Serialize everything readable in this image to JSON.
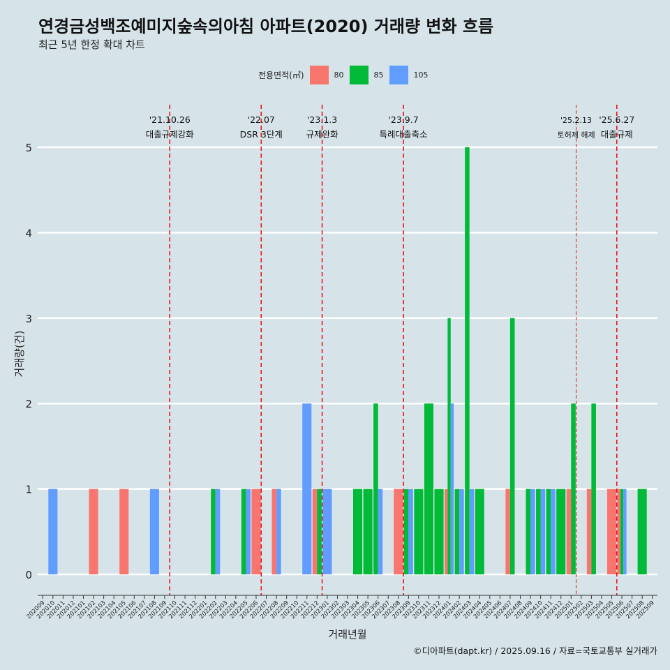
{
  "header": {
    "title": "연경금성백조예미지숲속의아침 아파트(2020) 거래량 변화 흐름",
    "subtitle": "최근 5년 한정 확대 차트"
  },
  "legend": {
    "title": "전용면적(㎡)",
    "items": [
      {
        "label": "80",
        "color": "#f8766d"
      },
      {
        "label": "85",
        "color": "#00ba38"
      },
      {
        "label": "105",
        "color": "#619cff"
      }
    ]
  },
  "caption": "©디아파트(dapt.kr) / 2025.09.16 / 자료=국토교통부 실거래가",
  "chart_data": {
    "type": "bar",
    "xlabel": "거래년월",
    "ylabel": "거래량(건)",
    "ylim": [
      0,
      5
    ],
    "yticks": [
      0,
      1,
      2,
      3,
      4,
      5
    ],
    "grid": true,
    "legend_position": "top",
    "categories": [
      "202009",
      "202010",
      "202011",
      "202012",
      "202101",
      "202102",
      "202103",
      "202104",
      "202105",
      "202106",
      "202107",
      "202108",
      "202109",
      "202110",
      "202111",
      "202112",
      "202201",
      "202202",
      "202203",
      "202204",
      "202205",
      "202206",
      "202207",
      "202208",
      "202209",
      "202210",
      "202211",
      "202212",
      "202301",
      "202302",
      "202303",
      "202304",
      "202305",
      "202306",
      "202307",
      "202308",
      "202309",
      "202310",
      "202311",
      "202312",
      "202401",
      "202402",
      "202403",
      "202404",
      "202405",
      "202406",
      "202407",
      "202408",
      "202409",
      "202410",
      "202411",
      "202412",
      "202501",
      "202502",
      "202503",
      "202504",
      "202505",
      "202506",
      "202507",
      "202508",
      "202509"
    ],
    "series": [
      {
        "name": "80",
        "color": "#f8766d",
        "values": [
          {
            "x": "202102",
            "y": 1
          },
          {
            "x": "202105",
            "y": 1
          },
          {
            "x": "202206",
            "y": 1
          },
          {
            "x": "202208",
            "y": 1
          },
          {
            "x": "202212",
            "y": 1
          },
          {
            "x": "202308",
            "y": 1
          },
          {
            "x": "202401",
            "y": 1
          },
          {
            "x": "202407",
            "y": 1
          },
          {
            "x": "202501",
            "y": 1
          },
          {
            "x": "202503",
            "y": 1
          },
          {
            "x": "202505",
            "y": 1
          },
          {
            "x": "202506",
            "y": 1
          }
        ]
      },
      {
        "name": "85",
        "color": "#00ba38",
        "values": [
          {
            "x": "202202",
            "y": 1
          },
          {
            "x": "202205",
            "y": 1
          },
          {
            "x": "202212",
            "y": 1
          },
          {
            "x": "202304",
            "y": 1
          },
          {
            "x": "202305",
            "y": 1
          },
          {
            "x": "202306",
            "y": 2
          },
          {
            "x": "202309",
            "y": 1
          },
          {
            "x": "202310",
            "y": 1
          },
          {
            "x": "202311",
            "y": 2
          },
          {
            "x": "202312",
            "y": 1
          },
          {
            "x": "202401",
            "y": 3
          },
          {
            "x": "202402",
            "y": 1
          },
          {
            "x": "202403",
            "y": 5
          },
          {
            "x": "202404",
            "y": 1
          },
          {
            "x": "202407",
            "y": 3
          },
          {
            "x": "202409",
            "y": 1
          },
          {
            "x": "202410",
            "y": 1
          },
          {
            "x": "202411",
            "y": 1
          },
          {
            "x": "202412",
            "y": 1
          },
          {
            "x": "202501",
            "y": 2
          },
          {
            "x": "202503",
            "y": 2
          },
          {
            "x": "202506",
            "y": 1
          },
          {
            "x": "202508",
            "y": 1
          }
        ]
      },
      {
        "name": "105",
        "color": "#619cff",
        "values": [
          {
            "x": "202010",
            "y": 1
          },
          {
            "x": "202108",
            "y": 1
          },
          {
            "x": "202202",
            "y": 1
          },
          {
            "x": "202205",
            "y": 1
          },
          {
            "x": "202208",
            "y": 1
          },
          {
            "x": "202211",
            "y": 2
          },
          {
            "x": "202301",
            "y": 1
          },
          {
            "x": "202306",
            "y": 1
          },
          {
            "x": "202309",
            "y": 1
          },
          {
            "x": "202401",
            "y": 2
          },
          {
            "x": "202402",
            "y": 1
          },
          {
            "x": "202403",
            "y": 1
          },
          {
            "x": "202409",
            "y": 1
          },
          {
            "x": "202410",
            "y": 1
          },
          {
            "x": "202411",
            "y": 1
          },
          {
            "x": "202506",
            "y": 1
          }
        ]
      }
    ],
    "annotations": [
      {
        "date": "'21.10.26",
        "label": "대출규제강화",
        "x": "202110",
        "style": "bold"
      },
      {
        "date": "'22.07",
        "label": "DSR 3단계",
        "x": "202207",
        "style": "bold"
      },
      {
        "date": "'23.1.3",
        "label": "규제완화",
        "x": "202301",
        "style": "bold"
      },
      {
        "date": "'23.9.7",
        "label": "특례대출축소",
        "x": "202309",
        "style": "bold"
      },
      {
        "date": "'25.2.13",
        "label": "토허제 해제",
        "x": "202502",
        "style": "thin"
      },
      {
        "date": "'25.6.27",
        "label": "대출규제",
        "x": "202506",
        "style": "bold"
      }
    ]
  }
}
